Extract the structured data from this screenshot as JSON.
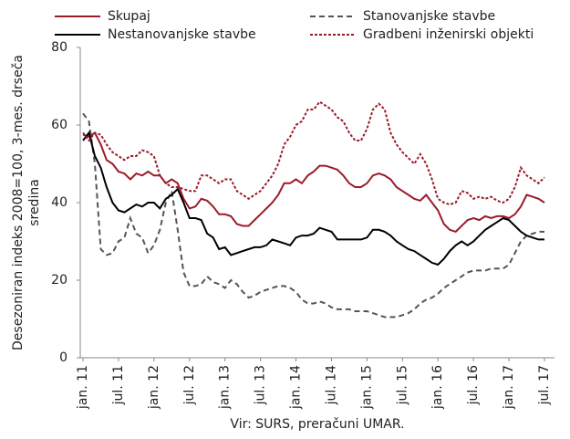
{
  "chart_data": {
    "type": "line",
    "ylabel": [
      "Desezoniran indeks 2008=100, 3-mes. drseča",
      "sredina"
    ],
    "source": "Vir: SURS, preračuni UMAR.",
    "categories": [
      "jan. 11",
      null,
      null,
      null,
      null,
      null,
      "jul. 11",
      null,
      null,
      null,
      null,
      null,
      "jan. 12",
      null,
      null,
      null,
      null,
      null,
      "jul. 12",
      null,
      null,
      null,
      null,
      null,
      "jan. 13",
      null,
      null,
      null,
      null,
      null,
      "jul. 13",
      null,
      null,
      null,
      null,
      null,
      "jan. 14",
      null,
      null,
      null,
      null,
      null,
      "jul. 14",
      null,
      null,
      null,
      null,
      null,
      "jan. 15",
      null,
      null,
      null,
      null,
      null,
      "jul. 15",
      null,
      null,
      null,
      null,
      null,
      "jan. 16",
      null,
      null,
      null,
      null,
      null,
      "jul. 16",
      null,
      null,
      null,
      null,
      null,
      "jan. 17",
      null,
      null,
      null,
      null,
      null,
      "jul. 17"
    ],
    "series": [
      {
        "name": "Skupaj",
        "color": "#9b1b2a",
        "dash": "solid",
        "values": [
          57.5,
          57,
          58,
          55,
          51,
          50,
          48,
          47.5,
          46,
          47.5,
          47,
          48,
          47,
          47,
          45,
          46,
          45,
          41,
          38.5,
          39,
          41,
          40.5,
          39,
          37,
          37,
          36.5,
          34.5,
          34,
          34,
          35.5,
          37,
          38.5,
          40,
          42,
          45,
          45,
          46,
          45,
          47,
          48,
          49.5,
          49.5,
          49,
          48.5,
          47,
          45,
          44,
          44,
          45,
          47,
          47.5,
          47,
          46,
          44,
          43,
          42,
          41,
          40.5,
          42,
          40,
          38,
          34.5,
          33,
          32.5,
          34,
          35.5,
          36,
          35.5,
          36.5,
          36,
          36.5,
          36.5,
          36,
          37,
          39,
          42,
          41.5,
          41,
          40
        ]
      },
      {
        "name": "Stanovanjske stavbe",
        "color": "#555555",
        "dash": "dashed",
        "values": [
          63,
          61,
          50,
          28,
          26.5,
          27,
          30,
          31,
          36,
          32,
          31,
          27,
          29,
          33,
          40,
          43,
          33,
          22,
          18.5,
          18.5,
          19,
          21,
          19.5,
          19,
          18,
          20,
          19,
          17,
          15.5,
          16,
          17,
          17.5,
          18,
          18.5,
          18.5,
          18,
          17,
          15,
          14,
          14,
          14.5,
          14,
          13,
          12.5,
          12.5,
          12.5,
          12,
          12,
          12,
          11.5,
          11,
          10.5,
          10.5,
          10.5,
          11,
          11.5,
          12.5,
          14,
          15,
          15.5,
          16.5,
          18,
          19,
          20,
          21,
          22,
          22.5,
          22.5,
          22.5,
          23,
          23,
          23,
          24,
          27,
          30,
          31.5,
          32,
          32.5,
          32.5
        ]
      },
      {
        "name": "Nestanovanjske stavbe",
        "color": "#000000",
        "dash": "solid",
        "values": [
          56,
          58,
          52,
          49,
          44,
          40,
          38,
          37.5,
          38.5,
          39.5,
          39,
          40,
          40,
          38.5,
          41,
          42,
          43.5,
          40,
          36,
          36,
          35.5,
          32,
          31,
          28,
          28.5,
          26.5,
          27,
          27.5,
          28,
          28.5,
          28.5,
          29,
          30.5,
          30,
          29.5,
          29,
          31,
          31.5,
          31.5,
          32,
          33.5,
          33,
          32.5,
          30.5,
          30.5,
          30.5,
          30.5,
          30.5,
          31,
          33,
          33,
          32.5,
          31.5,
          30,
          29,
          28,
          27.5,
          26.5,
          25.5,
          24.5,
          24,
          25.5,
          27.5,
          29,
          30,
          29,
          30,
          31.5,
          33,
          34,
          35,
          36,
          35.5,
          34,
          32.5,
          31.5,
          31,
          30.5,
          30.5
        ]
      },
      {
        "name": "Gradbeni inženirski objekti",
        "color": "#9b1b2a",
        "dash": "dotted",
        "values": [
          58,
          56,
          58,
          57.5,
          55,
          53,
          52,
          51,
          52,
          52,
          53.5,
          53,
          52,
          47,
          45,
          44,
          44,
          43.5,
          43,
          43,
          47,
          47,
          46,
          45,
          46,
          46,
          43,
          42,
          41,
          42,
          43,
          45,
          47,
          50,
          55,
          57,
          60,
          61,
          64,
          64,
          66,
          65,
          64,
          62,
          61,
          58,
          56,
          56,
          59,
          64,
          65.5,
          64,
          58,
          55,
          53,
          51.5,
          50,
          52.5,
          50,
          46,
          41,
          40,
          39.5,
          40,
          43,
          42.5,
          41,
          41.5,
          41,
          41.5,
          40.5,
          40,
          41,
          44,
          49,
          47,
          46,
          45,
          46.5
        ]
      }
    ],
    "ylim": [
      0,
      80
    ],
    "yticks": [
      0,
      20,
      40,
      60,
      80
    ],
    "grid": false
  }
}
